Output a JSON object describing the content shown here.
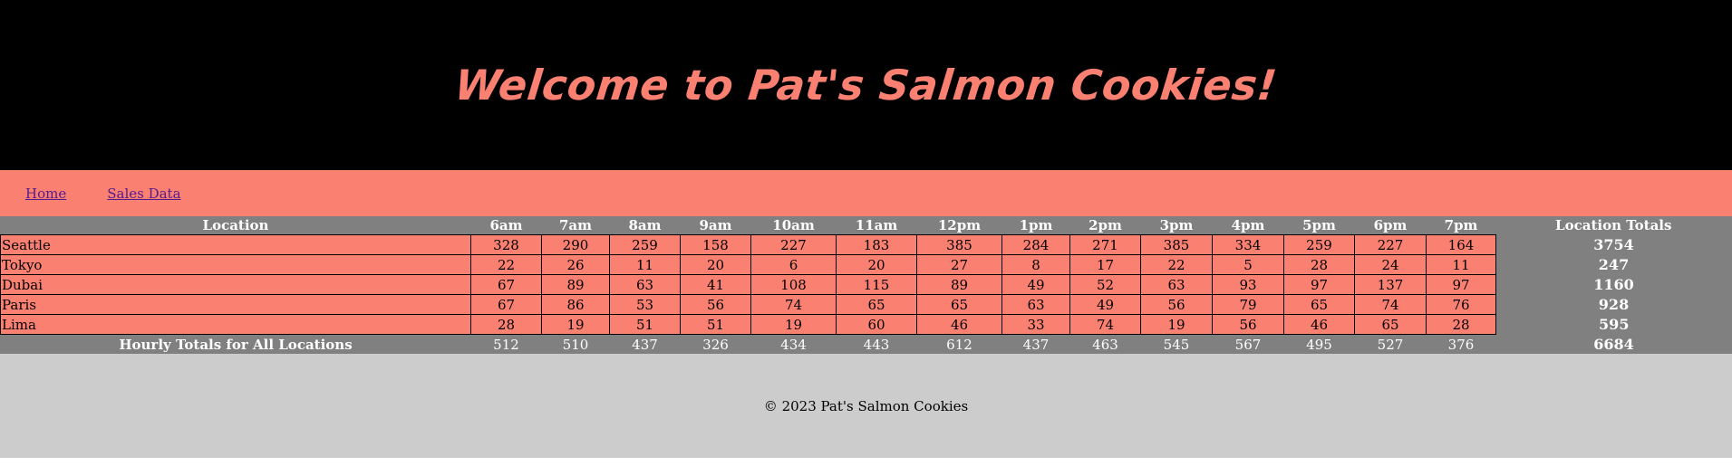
{
  "header": {
    "title": "Welcome to Pat's Salmon Cookies!"
  },
  "nav": {
    "items": [
      {
        "label": "Home"
      },
      {
        "label": "Sales Data"
      }
    ]
  },
  "table": {
    "location_header": "Location",
    "hours": [
      "6am",
      "7am",
      "8am",
      "9am",
      "10am",
      "11am",
      "12pm",
      "1pm",
      "2pm",
      "3pm",
      "4pm",
      "5pm",
      "6pm",
      "7pm"
    ],
    "totals_header": "Location Totals",
    "rows": [
      {
        "name": "Seattle",
        "values": [
          328,
          290,
          259,
          158,
          227,
          183,
          385,
          284,
          271,
          385,
          334,
          259,
          227,
          164
        ],
        "total": 3754
      },
      {
        "name": "Tokyo",
        "values": [
          22,
          26,
          11,
          20,
          6,
          20,
          27,
          8,
          17,
          22,
          5,
          28,
          24,
          11
        ],
        "total": 247
      },
      {
        "name": "Dubai",
        "values": [
          67,
          89,
          63,
          41,
          108,
          115,
          89,
          49,
          52,
          63,
          93,
          97,
          137,
          97
        ],
        "total": 1160
      },
      {
        "name": "Paris",
        "values": [
          67,
          86,
          53,
          56,
          74,
          65,
          65,
          63,
          49,
          56,
          79,
          65,
          74,
          76
        ],
        "total": 928
      },
      {
        "name": "Lima",
        "values": [
          28,
          19,
          51,
          51,
          19,
          60,
          46,
          33,
          74,
          19,
          56,
          46,
          65,
          28
        ],
        "total": 595
      }
    ],
    "totals_row_label": "Hourly Totals for All Locations",
    "hourly_totals": [
      512,
      510,
      437,
      326,
      434,
      443,
      612,
      437,
      463,
      545,
      567,
      495,
      527,
      376
    ],
    "grand_total": 6684
  },
  "footer": {
    "text": "© 2023 Pat's Salmon Cookies"
  },
  "colors": {
    "salmon": "#fa8072",
    "gray": "#808080",
    "footer_bg": "#cccccc",
    "header_bg": "#000000"
  }
}
